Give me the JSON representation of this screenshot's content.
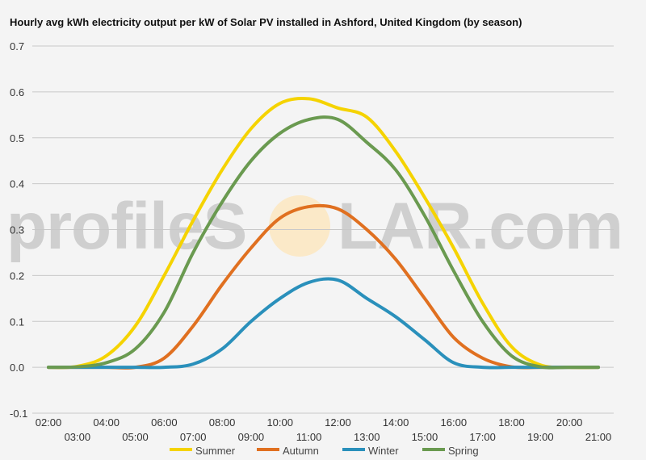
{
  "watermark": {
    "left": "profileS",
    "right": "LAR.com"
  },
  "chart_data": {
    "type": "line",
    "title": "Hourly avg kWh electricity output per kW of Solar PV installed in Ashford, United Kingdom (by season)",
    "xlabel": "",
    "ylabel": "",
    "x": [
      "02:00",
      "03:00",
      "04:00",
      "05:00",
      "06:00",
      "07:00",
      "08:00",
      "09:00",
      "10:00",
      "11:00",
      "12:00",
      "13:00",
      "14:00",
      "15:00",
      "16:00",
      "17:00",
      "18:00",
      "19:00",
      "20:00",
      "21:00"
    ],
    "x_ticks_top": [
      "02:00",
      "04:00",
      "06:00",
      "08:00",
      "10:00",
      "12:00",
      "14:00",
      "16:00",
      "18:00",
      "20:00"
    ],
    "x_ticks_bottom": [
      "03:00",
      "05:00",
      "07:00",
      "09:00",
      "11:00",
      "13:00",
      "15:00",
      "17:00",
      "19:00",
      "21:00"
    ],
    "y_ticks": [
      "-0.1",
      "0.0",
      "0.1",
      "0.2",
      "0.3",
      "0.4",
      "0.5",
      "0.6",
      "0.7"
    ],
    "ylim": [
      -0.1,
      0.7
    ],
    "grid": true,
    "legend": "bottom",
    "series": [
      {
        "name": "Summer",
        "color": "#f5d300",
        "values": [
          0,
          0.002,
          0.025,
          0.09,
          0.2,
          0.32,
          0.43,
          0.52,
          0.575,
          0.585,
          0.565,
          0.545,
          0.47,
          0.37,
          0.26,
          0.14,
          0.045,
          0.005,
          0,
          0
        ]
      },
      {
        "name": "Autumn",
        "color": "#e07020",
        "values": [
          0,
          0,
          0,
          0,
          0.02,
          0.09,
          0.18,
          0.26,
          0.325,
          0.35,
          0.345,
          0.3,
          0.235,
          0.15,
          0.065,
          0.02,
          0.001,
          0,
          0,
          0
        ]
      },
      {
        "name": "Winter",
        "color": "#2a90bb",
        "values": [
          0,
          0,
          0,
          0,
          0,
          0.007,
          0.04,
          0.1,
          0.15,
          0.185,
          0.19,
          0.15,
          0.11,
          0.06,
          0.01,
          0,
          0,
          0,
          0,
          0
        ]
      },
      {
        "name": "Spring",
        "color": "#6a9a50",
        "values": [
          0,
          0.001,
          0.01,
          0.04,
          0.12,
          0.25,
          0.36,
          0.45,
          0.51,
          0.54,
          0.54,
          0.49,
          0.43,
          0.33,
          0.21,
          0.1,
          0.025,
          0.001,
          0,
          0
        ]
      }
    ]
  }
}
